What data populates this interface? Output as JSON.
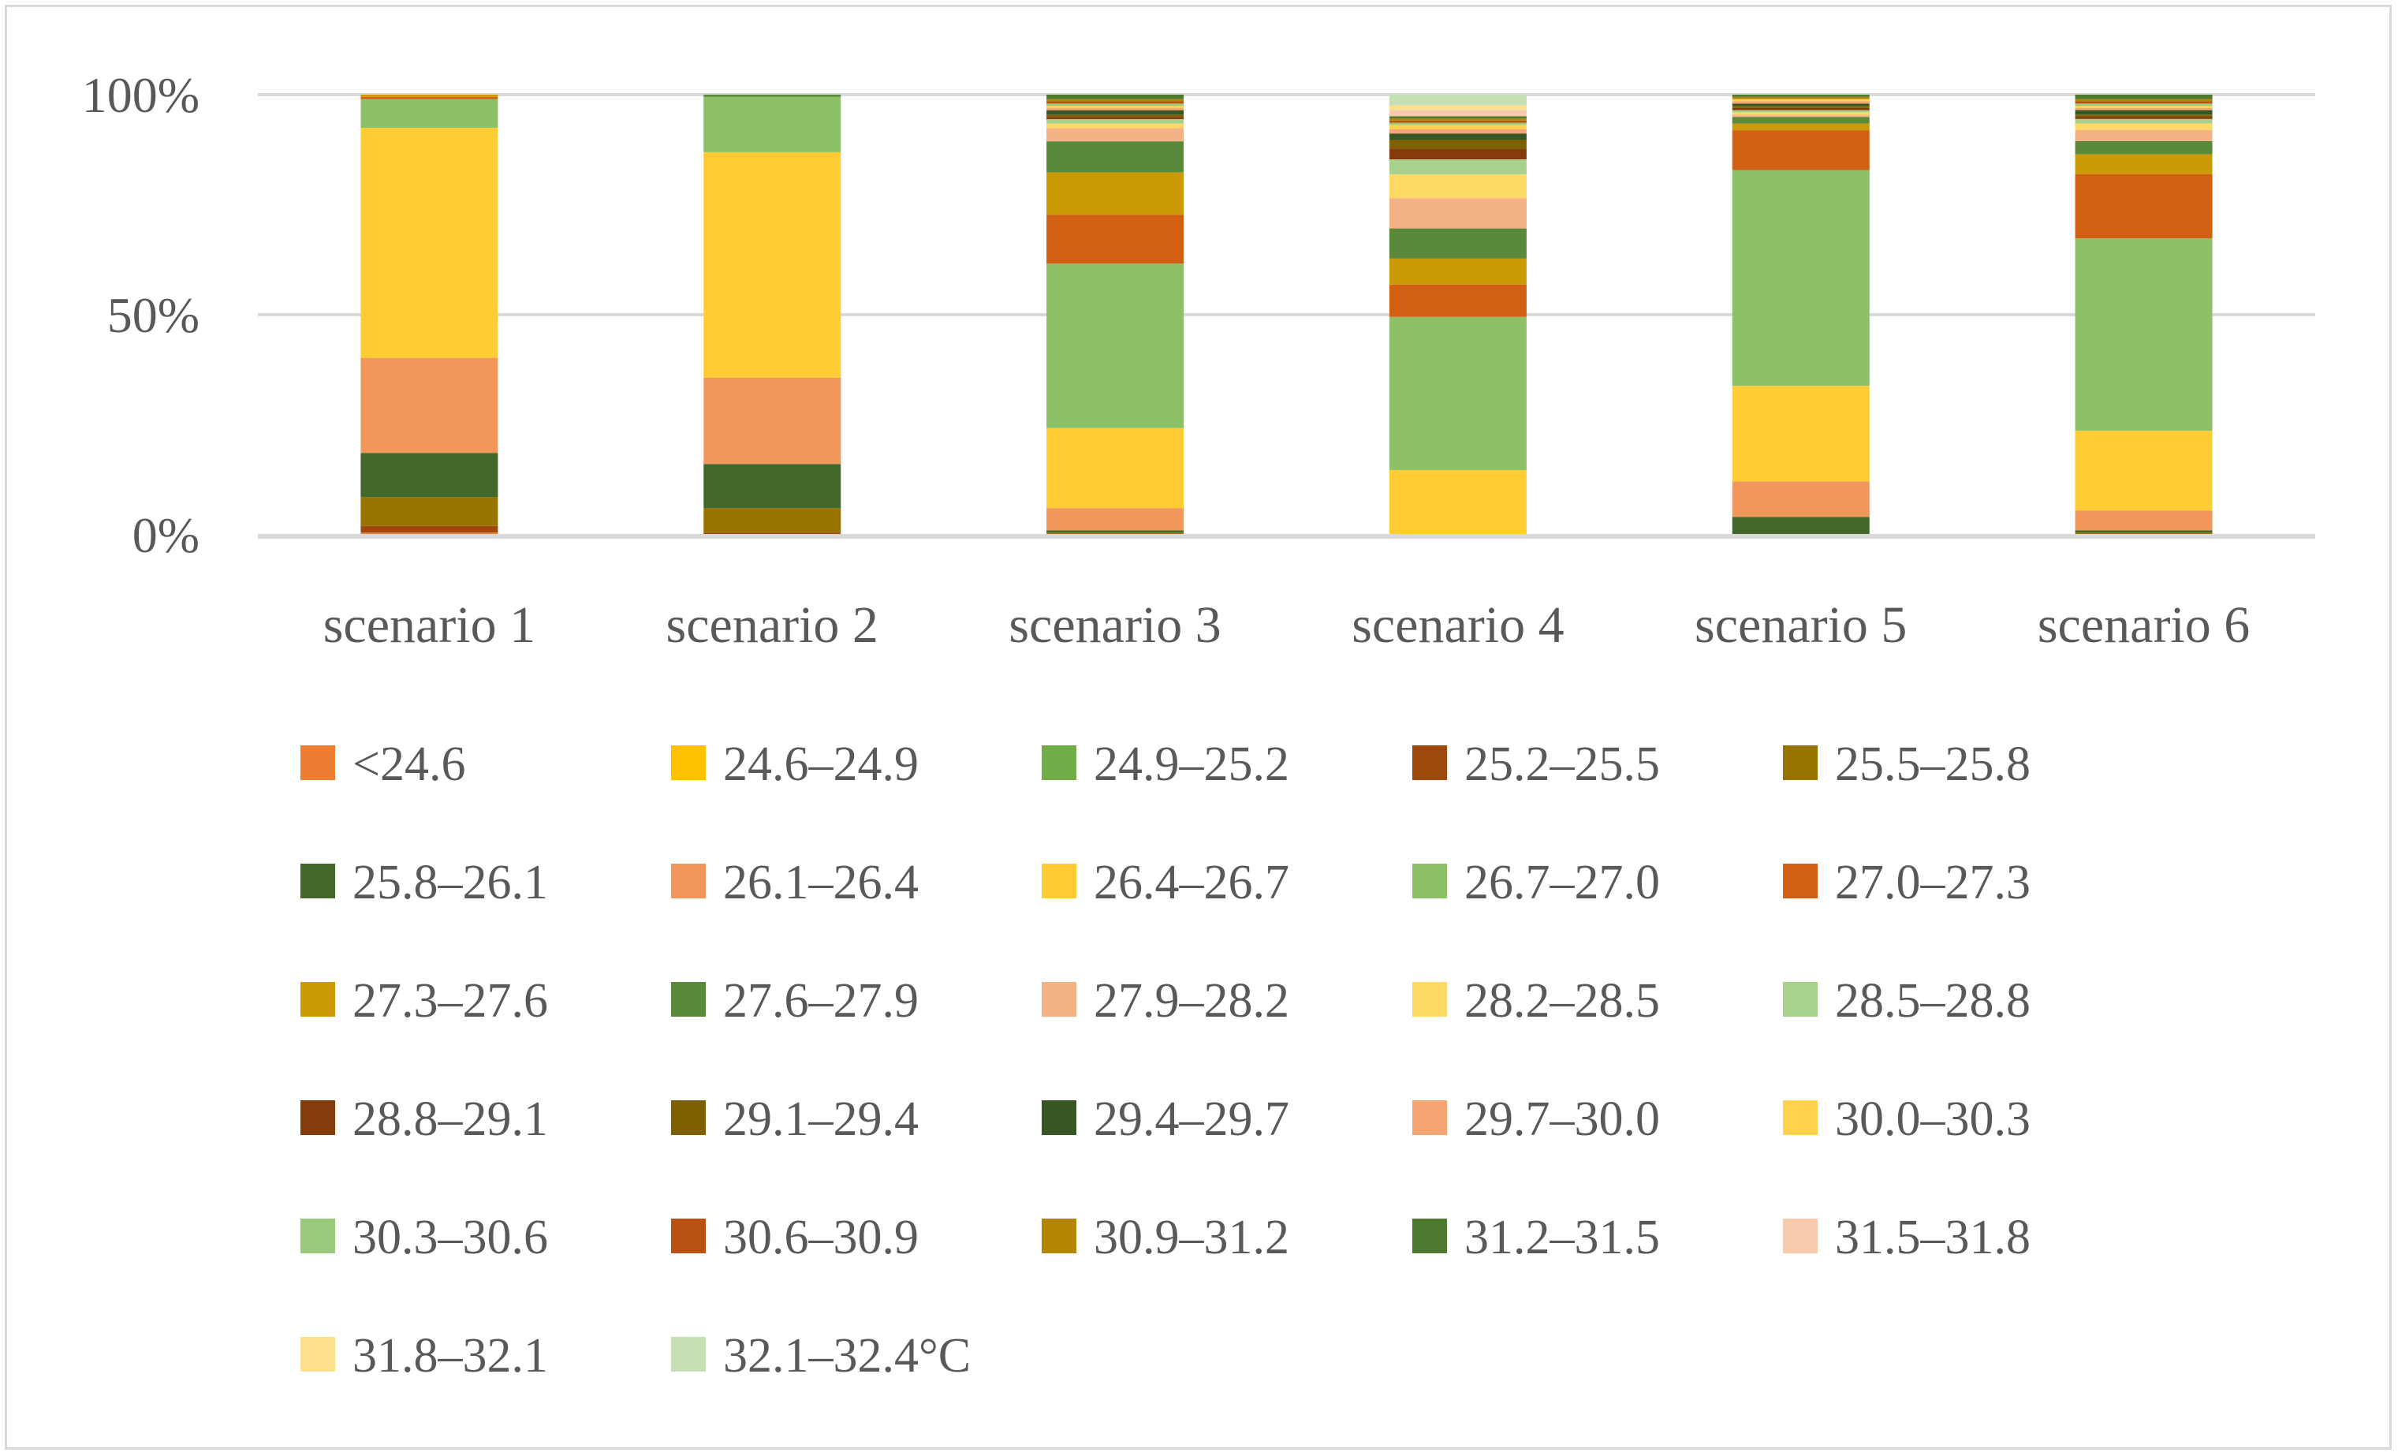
{
  "chart_data": {
    "type": "stacked-bar-100",
    "title": "",
    "xlabel": "",
    "ylabel": "",
    "ylim": [
      0,
      100
    ],
    "yticks": [
      "0%",
      "50%",
      "100%"
    ],
    "grid": true,
    "legend_position": "bottom",
    "categories": [
      "scenario 1",
      "scenario 2",
      "scenario 3",
      "scenario 4",
      "scenario 5",
      "scenario 6"
    ],
    "series": [
      {
        "name": "<24.6",
        "color": "#ed7d31",
        "values": [
          0.5,
          0.0,
          0.0,
          0.0,
          0.0,
          0.0
        ]
      },
      {
        "name": "24.6–24.9",
        "color": "#ffc000",
        "values": [
          0.0,
          0.0,
          0.0,
          0.0,
          0.0,
          0.0
        ]
      },
      {
        "name": "24.9–25.2",
        "color": "#70ad47",
        "values": [
          0.0,
          0.0,
          0.0,
          0.0,
          0.0,
          0.0
        ]
      },
      {
        "name": "25.2–25.5",
        "color": "#9e480e",
        "values": [
          1.5,
          0.5,
          0.0,
          0.0,
          0.0,
          0.0
        ]
      },
      {
        "name": "25.5–25.8",
        "color": "#997300",
        "values": [
          6.5,
          5.5,
          0.5,
          0.0,
          0.0,
          0.5
        ]
      },
      {
        "name": "25.8–26.1",
        "color": "#43682b",
        "values": [
          10.0,
          10.0,
          0.5,
          0.0,
          4.0,
          0.5
        ]
      },
      {
        "name": "26.1–26.4",
        "color": "#f1975a",
        "values": [
          21.5,
          19.5,
          5.0,
          0.0,
          8.0,
          4.5
        ]
      },
      {
        "name": "26.4–26.7",
        "color": "#ffcd33",
        "values": [
          52.0,
          51.0,
          18.0,
          15.0,
          21.5,
          18.0
        ]
      },
      {
        "name": "26.7–27.0",
        "color": "#8cc168",
        "values": [
          6.5,
          12.5,
          37.0,
          35.5,
          48.5,
          43.5
        ]
      },
      {
        "name": "27.0–27.3",
        "color": "#d26012",
        "values": [
          0.5,
          0.0,
          11.0,
          7.5,
          9.0,
          14.5
        ]
      },
      {
        "name": "27.3–27.6",
        "color": "#cc9a06",
        "values": [
          0.5,
          0.0,
          9.5,
          6.0,
          1.5,
          4.5
        ]
      },
      {
        "name": "27.6–27.9",
        "color": "#5a8a39",
        "values": [
          0.0,
          0.5,
          7.0,
          7.0,
          1.5,
          3.0
        ]
      },
      {
        "name": "27.9–28.2",
        "color": "#f4b183",
        "values": [
          0.0,
          0.0,
          3.0,
          7.0,
          0.5,
          2.5
        ]
      },
      {
        "name": "28.2–28.5",
        "color": "#ffd966",
        "values": [
          0.0,
          0.0,
          1.0,
          5.5,
          0.5,
          1.5
        ]
      },
      {
        "name": "28.5–28.8",
        "color": "#a9d18e",
        "values": [
          0.0,
          0.0,
          1.0,
          3.5,
          0.5,
          1.0
        ]
      },
      {
        "name": "28.8–29.1",
        "color": "#843c0c",
        "values": [
          0.0,
          0.0,
          0.5,
          2.5,
          0.5,
          0.5
        ]
      },
      {
        "name": "29.1–29.4",
        "color": "#7f6000",
        "values": [
          0.0,
          0.0,
          0.5,
          2.0,
          0.5,
          0.5
        ]
      },
      {
        "name": "29.4–29.7",
        "color": "#375623",
        "values": [
          0.0,
          0.0,
          1.0,
          1.5,
          0.5,
          1.0
        ]
      },
      {
        "name": "29.7–30.0",
        "color": "#f4a572",
        "values": [
          0.0,
          0.0,
          0.5,
          1.0,
          0.5,
          0.5
        ]
      },
      {
        "name": "30.0–30.3",
        "color": "#ffd24d",
        "values": [
          0.0,
          0.0,
          0.5,
          1.0,
          0.5,
          0.5
        ]
      },
      {
        "name": "30.3–30.6",
        "color": "#9bca7c",
        "values": [
          0.0,
          0.0,
          0.5,
          0.5,
          0.0,
          0.5
        ]
      },
      {
        "name": "30.6–30.9",
        "color": "#b85112",
        "values": [
          0.0,
          0.0,
          0.5,
          0.5,
          0.0,
          0.5
        ]
      },
      {
        "name": "30.9–31.2",
        "color": "#b38600",
        "values": [
          0.0,
          0.0,
          0.5,
          0.5,
          0.5,
          0.5
        ]
      },
      {
        "name": "31.2–31.5",
        "color": "#4e7a30",
        "values": [
          0.0,
          0.0,
          1.0,
          0.5,
          0.5,
          1.0
        ]
      },
      {
        "name": "31.5–31.8",
        "color": "#f8cbad",
        "values": [
          0.0,
          0.0,
          0.0,
          1.5,
          0.0,
          0.0
        ]
      },
      {
        "name": "31.8–32.1",
        "color": "#ffe08a",
        "values": [
          0.0,
          0.0,
          0.0,
          1.0,
          0.0,
          0.0
        ]
      },
      {
        "name": "32.1–32.4°C",
        "color": "#c5e0b4",
        "values": [
          0.0,
          0.0,
          0.0,
          2.5,
          0.0,
          0.0
        ]
      }
    ]
  }
}
